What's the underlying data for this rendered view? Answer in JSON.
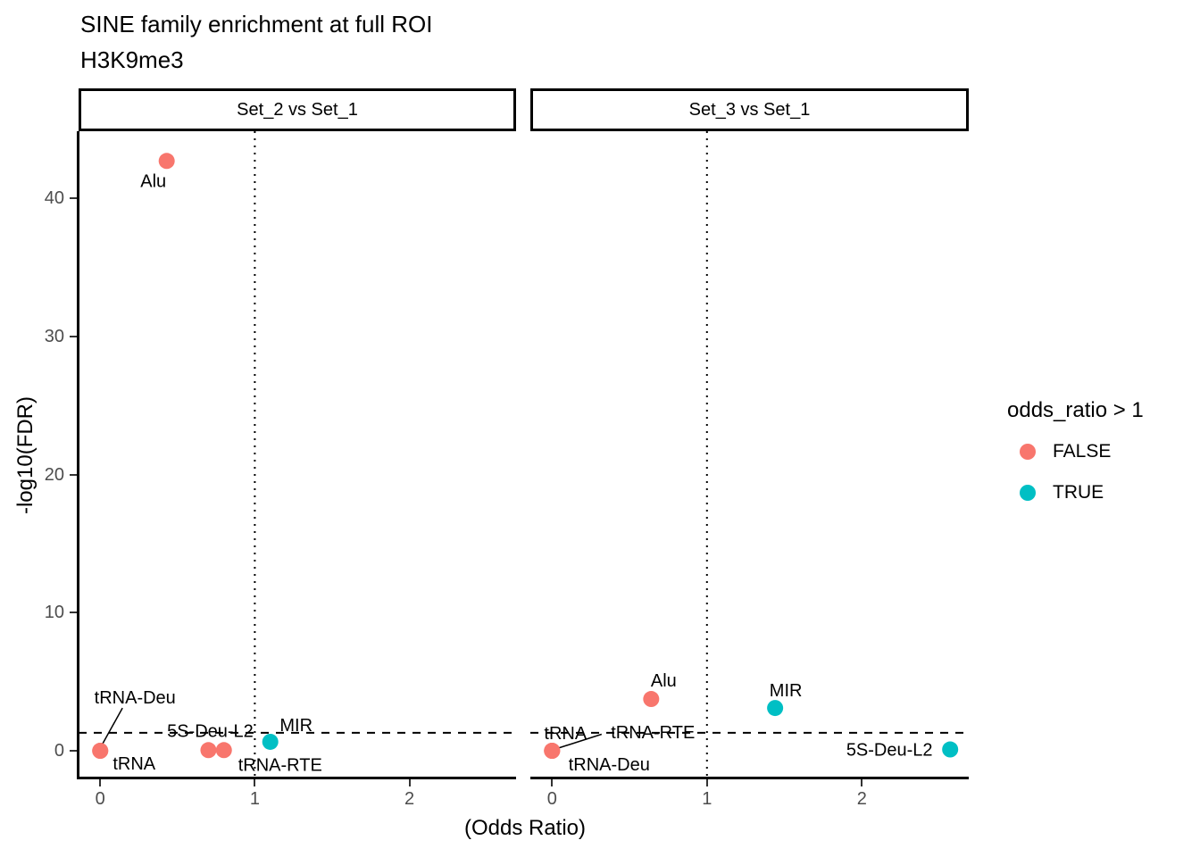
{
  "title": "SINE family enrichment at full ROI",
  "subtitle": "H3K9me3",
  "axes": {
    "x_label": "(Odds Ratio)",
    "y_label": "-log10(FDR)",
    "x_ticks": [
      0,
      1,
      2
    ],
    "y_ticks": [
      0,
      10,
      20,
      30,
      40
    ]
  },
  "legend": {
    "title": "odds_ratio > 1",
    "entries": [
      {
        "label": "FALSE",
        "color": "#F8766D"
      },
      {
        "label": "TRUE",
        "color": "#00BFC4"
      }
    ]
  },
  "colors": {
    "point_false": "#F8766D",
    "point_true": "#00BFC4",
    "axis_text": "#4d4d4d",
    "line": "#000000"
  },
  "chart_data": {
    "type": "scatter",
    "title": "SINE family enrichment at full ROI",
    "subtitle": "H3K9me3",
    "xlabel": "(Odds Ratio)",
    "ylabel": "-log10(FDR)",
    "xlim": [
      -0.14,
      2.69
    ],
    "ylim": [
      -2.0,
      44.85
    ],
    "x_ticks": [
      0,
      1,
      2
    ],
    "y_ticks": [
      0,
      10,
      20,
      30,
      40
    ],
    "reference_lines": {
      "hline": {
        "y": 1.3,
        "style": "dashed"
      },
      "vline": {
        "x": 1.0,
        "style": "dotted"
      }
    },
    "color_variable": "odds_ratio > 1",
    "facets": [
      {
        "label": "Set_2 vs Set_1",
        "points": [
          {
            "name": "Alu",
            "x": 0.43,
            "y": 42.7,
            "odds_gt_1": false,
            "label_offset": [
              -15,
              22
            ]
          },
          {
            "name": "tRNA-Deu",
            "x": 0.0,
            "y": 0.0,
            "odds_gt_1": false,
            "label_offset": [
              39,
              -60
            ],
            "leader": [
              [
                0.144,
                3.1
              ],
              [
                0.01,
                0.4
              ]
            ]
          },
          {
            "name": "tRNA",
            "x": 0.0,
            "y": 0.0,
            "odds_gt_1": false,
            "label_offset": [
              38,
              14
            ]
          },
          {
            "name": "5S-Deu-L2",
            "x": 0.7,
            "y": 0.05,
            "odds_gt_1": false,
            "label_offset": [
              2,
              -22
            ]
          },
          {
            "name": "tRNA-RTE",
            "x": 0.8,
            "y": 0.05,
            "odds_gt_1": false,
            "label_offset": [
              63,
              16
            ]
          },
          {
            "name": "MIR",
            "x": 1.1,
            "y": 0.65,
            "odds_gt_1": true,
            "label_offset": [
              29,
              -19
            ]
          }
        ]
      },
      {
        "label": "Set_3 vs Set_1",
        "points": [
          {
            "name": "Alu",
            "x": 0.64,
            "y": 3.75,
            "odds_gt_1": false,
            "label_offset": [
              14,
              -21
            ]
          },
          {
            "name": "MIR",
            "x": 1.44,
            "y": 3.1,
            "odds_gt_1": true,
            "label_offset": [
              12,
              -20
            ]
          },
          {
            "name": "5S-Deu-L2",
            "x": 2.57,
            "y": 0.1,
            "odds_gt_1": true,
            "label_offset": [
              -68,
              0
            ]
          },
          {
            "name": "tRNA",
            "x": 0.0,
            "y": 0.0,
            "odds_gt_1": false,
            "label_offset": [
              15,
              -20
            ]
          },
          {
            "name": "tRNA-RTE",
            "x": 0.0,
            "y": 0.0,
            "odds_gt_1": false,
            "label_offset": [
              113,
              -21
            ],
            "leader": [
              [
                0.32,
                1.2
              ],
              [
                0.0,
                0.05
              ]
            ]
          },
          {
            "name": "tRNA-Deu",
            "x": 0.0,
            "y": 0.0,
            "odds_gt_1": false,
            "label_offset": [
              64,
              15
            ]
          }
        ]
      }
    ]
  }
}
